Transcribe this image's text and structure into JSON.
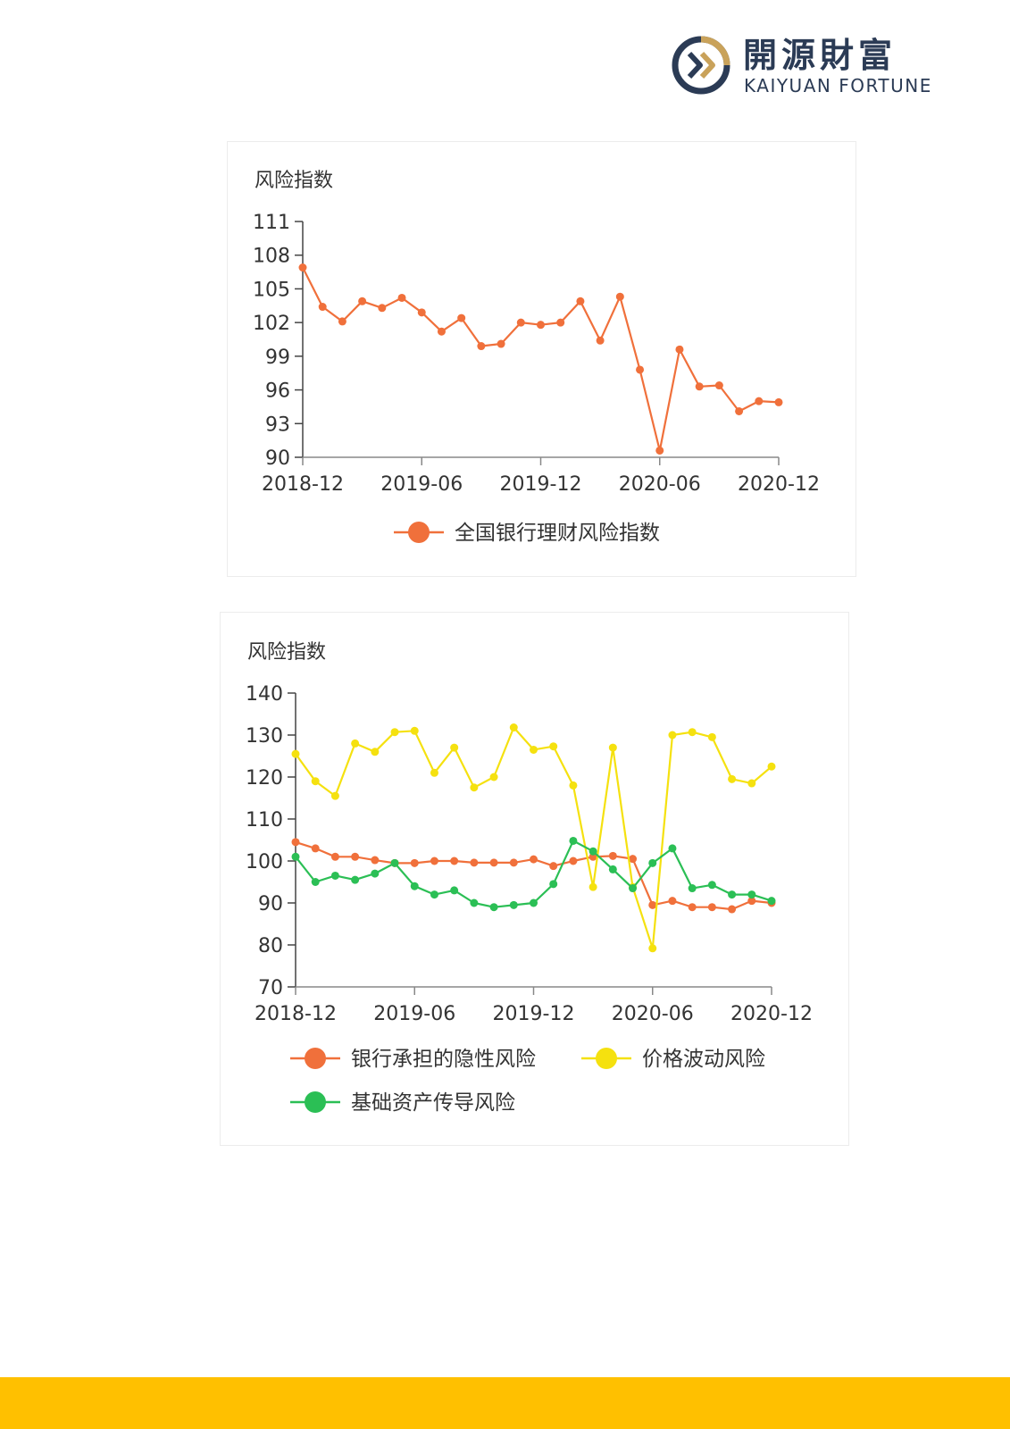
{
  "brand": {
    "name_cn": "開源財富",
    "name_en": "KAIYUAN FORTUNE",
    "mark_icon": "kaiyuan-logo-icon"
  },
  "colors": {
    "accent_bar": "#ffc000",
    "brand_navy": "#2b3b55",
    "brand_gold": "#c9a25a"
  },
  "chart_data": [
    {
      "type": "line",
      "ylabel": "风险指数",
      "xticks": [
        "2018-12",
        "2019-06",
        "2019-12",
        "2020-06",
        "2020-12"
      ],
      "x": [
        "2018-12",
        "2019-01",
        "2019-02",
        "2019-03",
        "2019-04",
        "2019-05",
        "2019-06",
        "2019-07",
        "2019-08",
        "2019-09",
        "2019-10",
        "2019-11",
        "2019-12",
        "2020-01",
        "2020-02",
        "2020-03",
        "2020-04",
        "2020-05",
        "2020-06",
        "2020-07",
        "2020-08",
        "2020-09",
        "2020-10",
        "2020-11",
        "2020-12"
      ],
      "ylim": [
        90,
        111
      ],
      "yticks": [
        90,
        93,
        96,
        99,
        102,
        105,
        108,
        111
      ],
      "legend_position": "bottom",
      "series": [
        {
          "name": "全国银行理财风险指数",
          "color": "#f0703b",
          "values": [
            106.9,
            103.4,
            102.1,
            103.9,
            103.3,
            104.2,
            102.9,
            101.2,
            102.4,
            99.9,
            100.1,
            102.0,
            101.8,
            102.0,
            103.9,
            100.4,
            104.3,
            97.8,
            90.6,
            99.6,
            96.3,
            96.4,
            94.1,
            95.0,
            94.9
          ]
        }
      ]
    },
    {
      "type": "line",
      "ylabel": "风险指数",
      "xticks": [
        "2018-12",
        "2019-06",
        "2019-12",
        "2020-06",
        "2020-12"
      ],
      "x": [
        "2018-12",
        "2019-01",
        "2019-02",
        "2019-03",
        "2019-04",
        "2019-05",
        "2019-06",
        "2019-07",
        "2019-08",
        "2019-09",
        "2019-10",
        "2019-11",
        "2019-12",
        "2020-01",
        "2020-02",
        "2020-03",
        "2020-04",
        "2020-05",
        "2020-06",
        "2020-07",
        "2020-08",
        "2020-09",
        "2020-10",
        "2020-11",
        "2020-12"
      ],
      "ylim": [
        70,
        140
      ],
      "yticks": [
        70,
        80,
        90,
        100,
        110,
        120,
        130,
        140
      ],
      "legend_position": "bottom",
      "series": [
        {
          "name": "银行承担的隐性风险",
          "color": "#f0703b",
          "values": [
            104.5,
            103.0,
            101.0,
            101.0,
            100.2,
            99.5,
            99.5,
            100.0,
            100.0,
            99.6,
            99.6,
            99.6,
            100.4,
            98.8,
            100.0,
            101.0,
            101.2,
            100.5,
            89.5,
            90.5,
            89.0,
            89.0,
            88.5,
            90.5,
            90.0
          ]
        },
        {
          "name": "价格波动风险",
          "color": "#f5e10f",
          "values": [
            125.5,
            119.0,
            115.5,
            128.0,
            126.0,
            130.7,
            131.0,
            121.0,
            127.0,
            117.5,
            120.0,
            131.8,
            126.5,
            127.3,
            118.0,
            93.8,
            127.0,
            93.8,
            79.2,
            130.0,
            130.7,
            129.5,
            119.5,
            118.5,
            122.5
          ]
        },
        {
          "name": "基础资产传导风险",
          "color": "#2bbf55",
          "values": [
            101.0,
            95.0,
            96.5,
            95.5,
            97.0,
            99.5,
            94.0,
            92.0,
            93.0,
            90.0,
            89.0,
            89.5,
            90.0,
            94.5,
            104.8,
            102.3,
            98.0,
            93.5,
            99.5,
            103.0,
            93.5,
            94.3,
            92.0,
            92.0,
            90.5
          ]
        }
      ]
    }
  ]
}
